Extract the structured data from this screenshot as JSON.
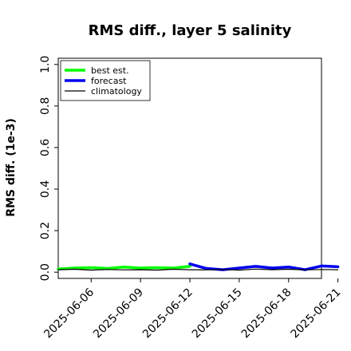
{
  "chart_data": {
    "type": "line",
    "title": "RMS diff., layer 5 salinity",
    "xlabel": "",
    "ylabel": "RMS diff. (1e-3)",
    "ylim": [
      -0.03,
      1.03
    ],
    "yticks": [
      0.0,
      0.2,
      0.4,
      0.6,
      0.8,
      1.0
    ],
    "ytick_labels": [
      "0.0",
      "0.2",
      "0.4",
      "0.6",
      "0.8",
      "1.0"
    ],
    "xlim": [
      0.0,
      16.0
    ],
    "xticks": [
      2,
      5,
      8,
      11,
      14,
      17
    ],
    "xtick_labels": [
      "2025-06-06",
      "2025-06-09",
      "2025-06-12",
      "2025-06-15",
      "2025-06-18",
      "2025-06-21"
    ],
    "highlight_tick": "2025-06-12",
    "highlight_color": "#228B22",
    "legend": {
      "position": "top-left"
    },
    "grid": false,
    "series": [
      {
        "name": "best est.",
        "color": "#00ff00",
        "width": 3.5,
        "x": [
          "2025-06-04",
          "2025-06-05",
          "2025-06-06",
          "2025-06-07",
          "2025-06-08",
          "2025-06-09",
          "2025-06-10",
          "2025-06-11",
          "2025-06-12"
        ],
        "y": [
          0.015,
          0.02,
          0.022,
          0.018,
          0.025,
          0.02,
          0.022,
          0.02,
          0.028
        ]
      },
      {
        "name": "forecast",
        "color": "#0000ee",
        "width": 3.5,
        "x": [
          "2025-06-12",
          "2025-06-13",
          "2025-06-14",
          "2025-06-15",
          "2025-06-16",
          "2025-06-17",
          "2025-06-18",
          "2025-06-19",
          "2025-06-20",
          "2025-06-21"
        ],
        "y": [
          0.04,
          0.018,
          0.012,
          0.02,
          0.028,
          0.02,
          0.025,
          0.012,
          0.03,
          0.026
        ]
      },
      {
        "name": "climatology",
        "color": "#000000",
        "width": 1.2,
        "x": [
          "2025-06-04",
          "2025-06-05",
          "2025-06-06",
          "2025-06-07",
          "2025-06-08",
          "2025-06-09",
          "2025-06-10",
          "2025-06-11",
          "2025-06-12",
          "2025-06-13",
          "2025-06-14",
          "2025-06-15",
          "2025-06-16",
          "2025-06-17",
          "2025-06-18",
          "2025-06-19",
          "2025-06-20",
          "2025-06-21"
        ],
        "y": [
          0.012,
          0.014,
          0.01,
          0.013,
          0.011,
          0.012,
          0.01,
          0.014,
          0.012,
          0.011,
          0.013,
          0.01,
          0.015,
          0.012,
          0.014,
          0.011,
          0.013,
          0.012
        ]
      }
    ]
  }
}
